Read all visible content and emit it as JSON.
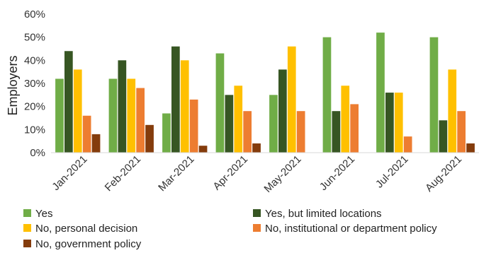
{
  "chart_data": {
    "type": "bar",
    "title": "",
    "xlabel": "",
    "ylabel": "Employers",
    "ylim": [
      0,
      60
    ],
    "yticks": [
      "0%",
      "10%",
      "20%",
      "30%",
      "40%",
      "50%",
      "60%"
    ],
    "grid": false,
    "legend_position": "bottom",
    "categories": [
      "Jan-2021",
      "Feb-2021",
      "Mar-2021",
      "Apr-2021",
      "May-2021",
      "Jun-2021",
      "Jul-2021",
      "Aug-2021"
    ],
    "series": [
      {
        "name": "Yes",
        "color": "#70AD47",
        "values": [
          32,
          32,
          17,
          43,
          25,
          50,
          52,
          50
        ]
      },
      {
        "name": "Yes, but limited locations",
        "color": "#375623",
        "values": [
          44,
          40,
          46,
          25,
          36,
          18,
          26,
          14
        ]
      },
      {
        "name": "No, personal decision",
        "color": "#FFC000",
        "values": [
          36,
          32,
          40,
          29,
          46,
          29,
          26,
          36
        ]
      },
      {
        "name": "No, institutional or department policy",
        "color": "#ED7D31",
        "values": [
          16,
          28,
          23,
          18,
          18,
          21,
          7,
          18
        ]
      },
      {
        "name": "No, government policy",
        "color": "#843C0C",
        "values": [
          8,
          12,
          3,
          4,
          null,
          null,
          null,
          4
        ]
      }
    ]
  }
}
